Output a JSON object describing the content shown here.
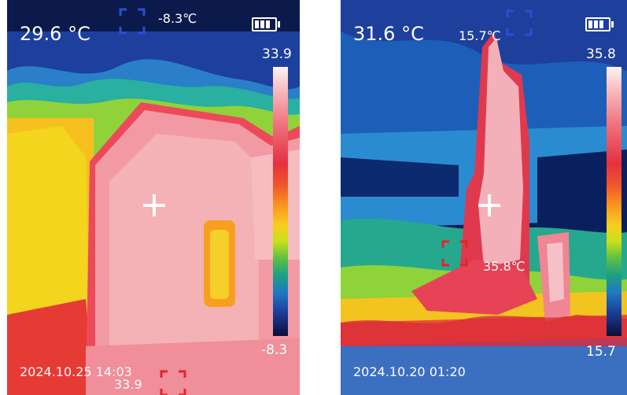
{
  "panels": [
    {
      "center_temp": "29.6 °C",
      "min_spot_temp": "-8.3℃",
      "scale_max": "33.9",
      "scale_min": "-8.3",
      "timestamp": "2024.10.25   14:03",
      "max_spot_temp": "33.9"
    },
    {
      "center_temp": "31.6 °C",
      "min_spot_temp": "15.7℃",
      "scale_max": "35.8",
      "scale_min": "15.7",
      "timestamp": "2024.10.20   01:20",
      "max_spot_temp": "35.8℃"
    }
  ],
  "icons": {
    "battery": "battery-full-icon",
    "crosshair": "crosshair-icon",
    "min_marker": "min-temp-marker-icon",
    "max_marker": "max-temp-marker-icon"
  },
  "colors": {
    "text": "#ffffff",
    "max_marker": "#e0262a",
    "min_marker": "#2a4fd4"
  }
}
